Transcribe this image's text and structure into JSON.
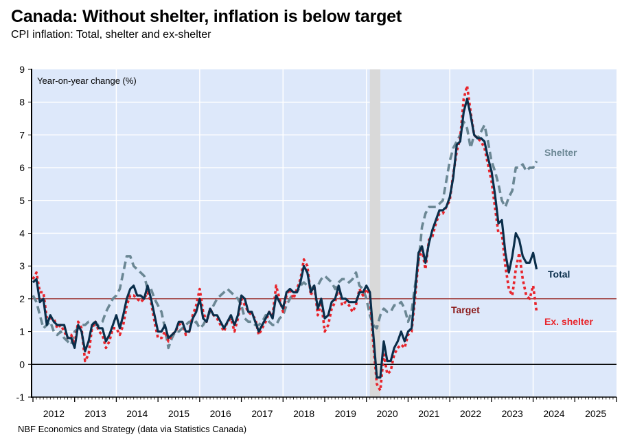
{
  "title": "Canada: Without shelter, inflation is below target",
  "subtitle": "CPI inflation: Total, shelter and ex-shelter",
  "source": "NBF Economics and Strategy (data via Statistics Canada)",
  "chart_data": {
    "type": "line",
    "title": "Canada: Without shelter, inflation is below target",
    "subtitle": "CPI inflation: Total, shelter and ex-shelter",
    "ylabel": "Year-on-year change (%)",
    "xlabel": "",
    "ylim": [
      -1,
      9
    ],
    "yticks": [
      -1,
      0,
      1,
      2,
      3,
      4,
      5,
      6,
      7,
      8,
      9
    ],
    "xlim": [
      "2012-01",
      "2025-12"
    ],
    "xticks": [
      "2012",
      "2013",
      "2014",
      "2015",
      "2016",
      "2017",
      "2018",
      "2019",
      "2020",
      "2021",
      "2022",
      "2023",
      "2024",
      "2025"
    ],
    "x_start": "2012-01",
    "frequency": "monthly",
    "grid": true,
    "recession_shading": {
      "start": "2020-02",
      "end": "2020-04",
      "color": "#d9d9d9"
    },
    "reference_lines": [
      {
        "name": "Target",
        "value": 2,
        "color": "#8b1a1a"
      },
      {
        "name": "Zero",
        "value": 0,
        "color": "#000000"
      }
    ],
    "series": [
      {
        "name": "Total",
        "color": "#0a2e4a",
        "style": "solid",
        "values": [
          2.5,
          2.6,
          1.9,
          2.0,
          1.2,
          1.5,
          1.3,
          1.2,
          1.2,
          1.2,
          0.8,
          0.8,
          0.5,
          1.2,
          1.0,
          0.4,
          0.7,
          1.2,
          1.3,
          1.1,
          1.1,
          0.7,
          0.9,
          1.2,
          1.5,
          1.1,
          1.5,
          2.0,
          2.3,
          2.4,
          2.1,
          2.1,
          2.0,
          2.4,
          2.0,
          1.5,
          1.0,
          1.0,
          1.2,
          0.8,
          0.9,
          1.0,
          1.3,
          1.3,
          1.0,
          1.0,
          1.4,
          1.6,
          2.0,
          1.4,
          1.3,
          1.7,
          1.5,
          1.5,
          1.3,
          1.1,
          1.3,
          1.5,
          1.2,
          1.5,
          2.1,
          2.0,
          1.6,
          1.6,
          1.3,
          1.0,
          1.2,
          1.4,
          1.6,
          1.4,
          2.1,
          1.9,
          1.7,
          2.2,
          2.3,
          2.2,
          2.2,
          2.5,
          3.0,
          2.8,
          2.2,
          2.4,
          1.7,
          2.0,
          1.4,
          1.5,
          1.9,
          2.0,
          2.4,
          2.0,
          2.0,
          1.9,
          1.9,
          1.9,
          2.2,
          2.2,
          2.4,
          2.2,
          0.9,
          -0.4,
          -0.4,
          0.7,
          0.1,
          0.1,
          0.5,
          0.7,
          1.0,
          0.7,
          1.0,
          1.1,
          2.2,
          3.4,
          3.6,
          3.1,
          3.7,
          4.1,
          4.4,
          4.7,
          4.7,
          4.8,
          5.1,
          5.7,
          6.7,
          6.8,
          7.7,
          8.1,
          7.6,
          7.0,
          6.9,
          6.9,
          6.8,
          6.3,
          5.9,
          5.2,
          4.3,
          4.4,
          3.4,
          2.8,
          3.3,
          4.0,
          3.8,
          3.3,
          3.1,
          3.1,
          3.4,
          2.9
        ]
      },
      {
        "name": "Shelter",
        "color": "#6b8794",
        "style": "dashed",
        "values": [
          2.1,
          1.9,
          1.5,
          1.1,
          1.2,
          1.3,
          1.0,
          0.9,
          1.0,
          0.8,
          0.7,
          0.6,
          1.0,
          1.1,
          1.2,
          1.2,
          1.3,
          1.3,
          1.2,
          1.2,
          1.3,
          1.6,
          1.8,
          2.0,
          2.1,
          2.3,
          2.8,
          3.3,
          3.3,
          3.0,
          2.9,
          2.8,
          2.7,
          2.3,
          2.3,
          2.0,
          1.8,
          1.6,
          1.1,
          0.5,
          0.8,
          1.0,
          1.0,
          1.1,
          1.2,
          1.3,
          1.2,
          1.3,
          1.1,
          1.2,
          1.4,
          1.6,
          1.8,
          2.0,
          2.1,
          2.2,
          2.3,
          2.2,
          2.1,
          2.0,
          1.8,
          1.4,
          1.3,
          1.3,
          1.2,
          1.2,
          1.3,
          1.5,
          1.3,
          1.2,
          1.2,
          1.4,
          1.5,
          1.8,
          2.0,
          2.2,
          2.2,
          2.4,
          2.5,
          2.4,
          2.3,
          2.4,
          2.4,
          2.6,
          2.7,
          2.6,
          2.5,
          2.3,
          2.5,
          2.6,
          2.6,
          2.5,
          2.6,
          2.8,
          2.4,
          2.3,
          2.0,
          1.5,
          1.2,
          1.1,
          1.5,
          1.7,
          1.6,
          1.6,
          1.8,
          1.8,
          1.9,
          1.7,
          1.3,
          1.6,
          2.4,
          3.1,
          4.2,
          4.6,
          4.8,
          4.8,
          4.8,
          4.9,
          5.0,
          5.6,
          6.2,
          6.6,
          6.8,
          7.0,
          7.4,
          7.2,
          6.6,
          7.0,
          6.9,
          7.1,
          7.3,
          6.8,
          6.2,
          5.9,
          5.5,
          5.0,
          4.8,
          5.1,
          5.3,
          6.0,
          6.0,
          6.1,
          5.9,
          6.0,
          6.0,
          6.2
        ]
      },
      {
        "name": "Ex. shelter",
        "color": "#e8242b",
        "style": "dotted",
        "values": [
          2.6,
          2.8,
          2.2,
          2.2,
          1.4,
          1.4,
          1.4,
          1.1,
          1.2,
          1.0,
          0.8,
          0.9,
          0.6,
          1.3,
          1.1,
          0.1,
          0.3,
          1.1,
          1.3,
          1.0,
          0.9,
          0.5,
          0.7,
          1.1,
          1.1,
          0.9,
          1.2,
          1.8,
          2.1,
          2.1,
          2.0,
          1.9,
          2.0,
          2.2,
          1.9,
          1.3,
          0.8,
          0.8,
          1.0,
          0.7,
          0.9,
          1.0,
          1.2,
          1.3,
          0.9,
          1.0,
          1.5,
          1.8,
          2.3,
          1.6,
          1.3,
          1.7,
          1.5,
          1.4,
          1.2,
          1.0,
          1.3,
          1.4,
          1.0,
          1.4,
          2.0,
          1.8,
          1.6,
          1.5,
          1.4,
          0.9,
          1.1,
          1.3,
          1.6,
          1.5,
          2.4,
          2.0,
          1.6,
          2.1,
          2.3,
          2.0,
          2.3,
          2.6,
          3.2,
          3.0,
          2.1,
          2.4,
          1.5,
          1.9,
          1.0,
          1.2,
          1.7,
          1.9,
          2.4,
          1.8,
          1.9,
          1.8,
          1.6,
          1.8,
          2.3,
          2.1,
          2.3,
          2.1,
          0.6,
          -0.6,
          -0.8,
          0.3,
          -0.3,
          -0.2,
          0.3,
          0.5,
          0.6,
          0.5,
          0.9,
          1.0,
          2.0,
          3.2,
          3.5,
          2.9,
          3.8,
          3.9,
          4.3,
          4.6,
          4.6,
          4.8,
          5.0,
          5.8,
          6.5,
          6.9,
          8.1,
          8.5,
          7.7,
          7.0,
          6.9,
          6.8,
          6.6,
          6.1,
          5.6,
          4.8,
          4.0,
          4.0,
          3.0,
          2.3,
          2.1,
          2.9,
          3.4,
          2.6,
          2.1,
          2.0,
          2.4,
          1.6
        ]
      }
    ],
    "annotations": [
      {
        "text": "Year-on-year change (%)",
        "position": "top-left"
      },
      {
        "text": "Shelter",
        "color": "#6b8794"
      },
      {
        "text": "Total",
        "color": "#0a2e4a"
      },
      {
        "text": "Target",
        "color": "#8b1a1a"
      },
      {
        "text": "Ex. shelter",
        "color": "#e8242b"
      }
    ],
    "legend": "inline-labels",
    "plot_background": "#dde8fa"
  }
}
